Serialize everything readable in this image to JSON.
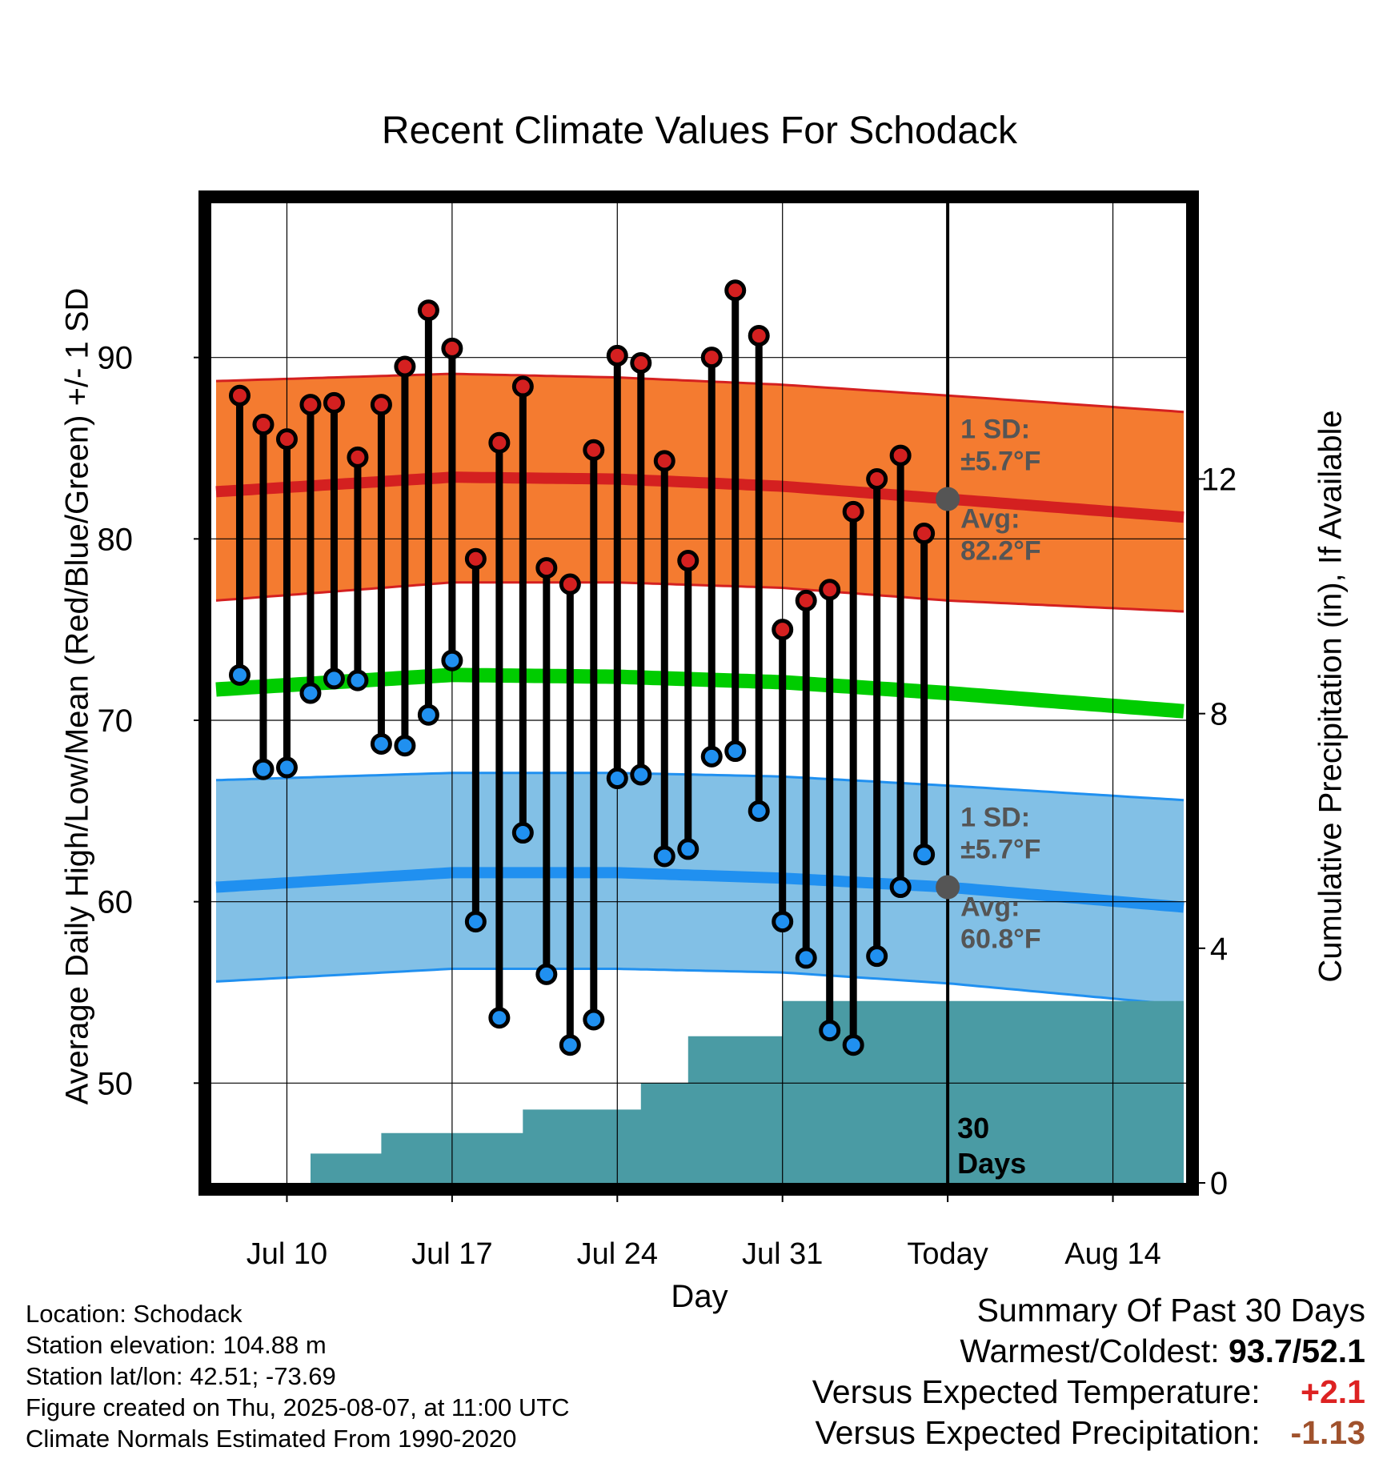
{
  "title": "Recent Climate Values For Schodack",
  "ylabel": "Average Daily High/Low/Mean (Red/Blue/Green) +/- 1 SD",
  "y2label": "Cumulative Precipitation (in), If Available",
  "xlabel": "Day",
  "info": {
    "location": "Location: Schodack",
    "elevation": "Station elevation: 104.88 m",
    "latlon": "Station lat/lon: 42.51; -73.69",
    "created": "Figure created on Thu, 2025-08-07, at 11:00 UTC",
    "normals": "Climate Normals Estimated From 1990-2020"
  },
  "summary": {
    "heading": "Summary Of Past 30 Days",
    "warm_cold_label": "Warmest/Coldest:",
    "warm_cold_value": "93.7/52.1",
    "temp_label": "Versus Expected Temperature:",
    "temp_value": "+2.1",
    "precip_label": "Versus Expected Precipitation:",
    "precip_value": "-1.13"
  },
  "colors": {
    "high_band": "#f47b30",
    "high_line": "#d42020",
    "low_band": "#82c0e6",
    "low_line": "#2090f0",
    "mean_line": "#00cc00",
    "precip": "#4a9ba4",
    "temp_value": "#dd2222",
    "precip_value": "#a0522d",
    "annotation": "#555555"
  },
  "chart_data": {
    "type": "line",
    "x_start": "2025-07-07",
    "x_end": "2025-08-17",
    "today": "2025-08-07",
    "xticks": [
      {
        "date": "2025-07-10",
        "label": "Jul 10"
      },
      {
        "date": "2025-07-17",
        "label": "Jul 17"
      },
      {
        "date": "2025-07-24",
        "label": "Jul 24"
      },
      {
        "date": "2025-07-31",
        "label": "Jul 31"
      },
      {
        "date": "2025-08-07",
        "label": "Today"
      },
      {
        "date": "2025-08-14",
        "label": "Aug 14"
      }
    ],
    "ylim": [
      44.5,
      98.5
    ],
    "yticks": [
      50,
      60,
      70,
      80,
      90
    ],
    "y2lim": [
      0,
      16.7
    ],
    "y2ticks": [
      0,
      4,
      8,
      12
    ],
    "grid": true,
    "normals": {
      "dates": [
        "2025-07-07",
        "2025-07-17",
        "2025-07-24",
        "2025-07-31",
        "2025-08-07",
        "2025-08-17"
      ],
      "high_mean": [
        82.6,
        83.4,
        83.3,
        82.9,
        82.2,
        81.2
      ],
      "high_upper": [
        88.7,
        89.1,
        88.9,
        88.5,
        87.9,
        87.0
      ],
      "high_lower": [
        76.6,
        77.6,
        77.6,
        77.3,
        76.6,
        76.0
      ],
      "mean": [
        71.7,
        72.5,
        72.4,
        72.1,
        71.5,
        70.5
      ],
      "low_mean": [
        60.8,
        61.6,
        61.6,
        61.3,
        60.8,
        59.7
      ],
      "low_upper": [
        66.7,
        67.1,
        67.1,
        66.9,
        66.4,
        65.6
      ],
      "low_lower": [
        55.6,
        56.3,
        56.3,
        56.1,
        55.5,
        54.3
      ]
    },
    "observed": {
      "dates": [
        "2025-07-08",
        "2025-07-09",
        "2025-07-10",
        "2025-07-11",
        "2025-07-12",
        "2025-07-13",
        "2025-07-14",
        "2025-07-15",
        "2025-07-16",
        "2025-07-17",
        "2025-07-18",
        "2025-07-19",
        "2025-07-20",
        "2025-07-21",
        "2025-07-22",
        "2025-07-23",
        "2025-07-24",
        "2025-07-25",
        "2025-07-26",
        "2025-07-27",
        "2025-07-28",
        "2025-07-29",
        "2025-07-30",
        "2025-07-31",
        "2025-08-01",
        "2025-08-02",
        "2025-08-03",
        "2025-08-04",
        "2025-08-05",
        "2025-08-06"
      ],
      "high": [
        87.9,
        86.3,
        85.5,
        87.4,
        87.5,
        84.5,
        87.4,
        89.5,
        92.6,
        90.5,
        78.9,
        85.3,
        88.4,
        78.4,
        77.5,
        84.9,
        90.1,
        89.7,
        84.3,
        78.8,
        90.0,
        93.7,
        91.2,
        75.0,
        76.6,
        77.2,
        81.5,
        83.3,
        84.6,
        80.3
      ],
      "low": [
        72.5,
        67.3,
        67.4,
        71.5,
        72.3,
        72.2,
        68.7,
        68.6,
        70.3,
        73.3,
        58.9,
        53.6,
        63.8,
        56.0,
        52.1,
        53.5,
        66.8,
        67.0,
        62.5,
        62.9,
        68.0,
        68.3,
        65.0,
        58.9,
        56.9,
        52.9,
        52.1,
        57.0,
        60.8,
        62.6
      ]
    },
    "precip_cumulative": {
      "dates": [
        "2025-07-07",
        "2025-07-08",
        "2025-07-09",
        "2025-07-10",
        "2025-07-11",
        "2025-07-12",
        "2025-07-13",
        "2025-07-14",
        "2025-07-15",
        "2025-07-16",
        "2025-07-17",
        "2025-07-18",
        "2025-07-19",
        "2025-07-20",
        "2025-07-21",
        "2025-07-22",
        "2025-07-23",
        "2025-07-24",
        "2025-07-25",
        "2025-07-26",
        "2025-07-27",
        "2025-07-28",
        "2025-07-29",
        "2025-07-30",
        "2025-07-31",
        "2025-08-01",
        "2025-08-02",
        "2025-08-03",
        "2025-08-04",
        "2025-08-05",
        "2025-08-06",
        "2025-08-07"
      ],
      "values": [
        0,
        0,
        0,
        0,
        0.5,
        0.5,
        0.5,
        0.85,
        0.85,
        0.85,
        0.85,
        0.85,
        0.85,
        1.25,
        1.25,
        1.25,
        1.25,
        1.25,
        1.7,
        1.7,
        2.5,
        2.5,
        2.5,
        2.5,
        3.1,
        3.1,
        3.1,
        3.1,
        3.1,
        3.1,
        3.1,
        3.1
      ]
    },
    "annotations": {
      "high_sd": "1 SD:",
      "high_sd_value": "±5.7°F",
      "high_avg": "Avg:",
      "high_avg_value": "82.2°F",
      "high_avg_temp": 82.2,
      "low_sd": "1 SD:",
      "low_sd_value": "±5.7°F",
      "low_avg": "Avg:",
      "low_avg_value": "60.8°F",
      "low_avg_temp": 60.8,
      "days_top": "30",
      "days_bottom": "Days"
    }
  }
}
